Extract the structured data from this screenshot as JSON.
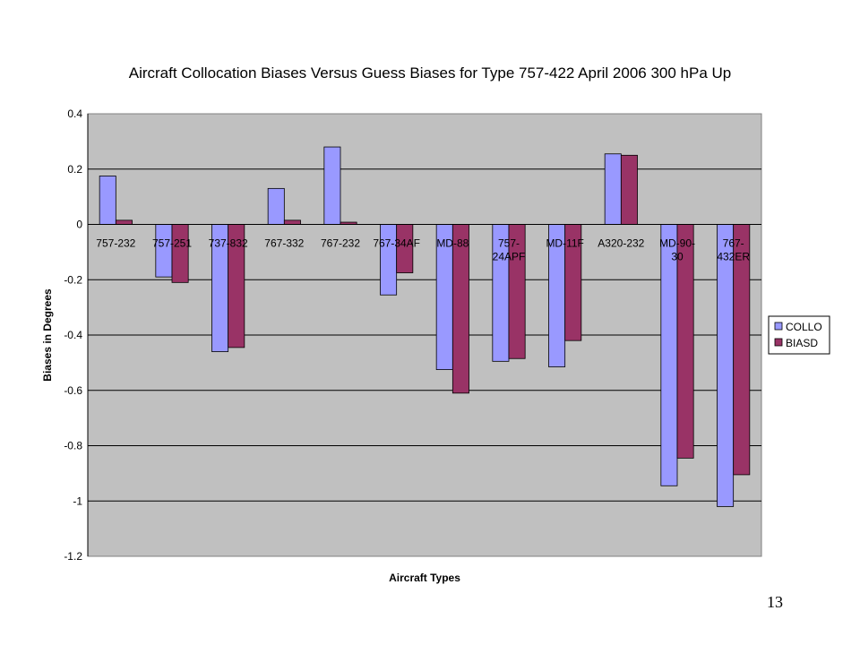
{
  "page_number": "13",
  "chart_data": {
    "type": "bar",
    "title": "Aircraft Collocation Biases Versus Guess Biases for Type 757-422 April 2006 300 hPa Up",
    "xlabel": "Aircraft Types",
    "ylabel": "Biases in Degrees",
    "ylim": [
      -1.2,
      0.4
    ],
    "yticks": [
      0.4,
      0.2,
      0,
      -0.2,
      -0.4,
      -0.6,
      -0.8,
      -1,
      -1.2
    ],
    "ytick_labels": [
      "0.4",
      "0.2",
      "0",
      "-0.2",
      "-0.4",
      "-0.6",
      "-0.8",
      "-1",
      "-1.2"
    ],
    "grid": true,
    "legend_position": "right",
    "plot_background": "#C0C0C0",
    "categories": [
      [
        "757-232"
      ],
      [
        "757-251"
      ],
      [
        "737-832"
      ],
      [
        "767-332"
      ],
      [
        "767-232"
      ],
      [
        "767-34AF"
      ],
      [
        "MD-88"
      ],
      [
        "757-",
        "24APF"
      ],
      [
        "MD-11F"
      ],
      [
        "A320-232"
      ],
      [
        "MD-90-",
        "30"
      ],
      [
        "767-",
        "432ER"
      ]
    ],
    "series": [
      {
        "name": "COLLO",
        "color": "#9999FF",
        "values": [
          0.175,
          -0.19,
          -0.46,
          0.13,
          0.28,
          -0.255,
          -0.525,
          -0.495,
          -0.515,
          0.255,
          -0.945,
          -1.02
        ]
      },
      {
        "name": "BIASD",
        "color": "#993366",
        "values": [
          0.015,
          -0.21,
          -0.445,
          0.015,
          0.008,
          -0.175,
          -0.61,
          -0.485,
          -0.42,
          0.25,
          -0.845,
          -0.905
        ]
      }
    ]
  }
}
